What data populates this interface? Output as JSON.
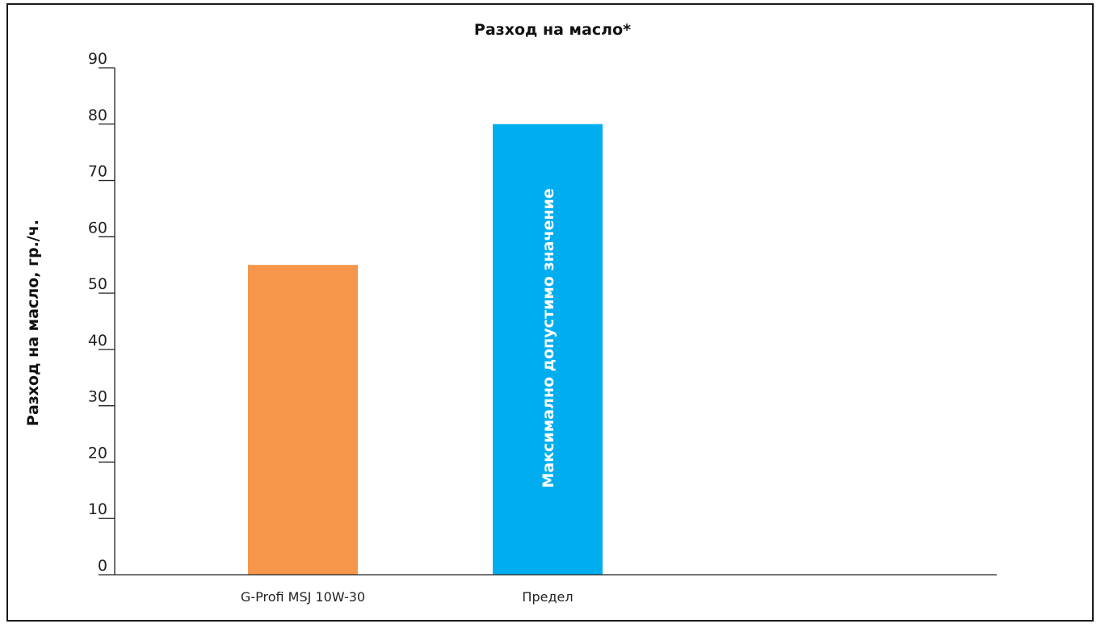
{
  "chart_data": {
    "type": "bar",
    "title": "Разход на масло*",
    "xlabel": "",
    "ylabel": "Разход на масло, гр./ч.",
    "ylim": [
      0,
      90
    ],
    "yticks": [
      0,
      10,
      20,
      30,
      40,
      50,
      60,
      70,
      80,
      90
    ],
    "categories": [
      "G-Profi MSJ 10W-30",
      "Предел"
    ],
    "values": [
      55,
      80
    ],
    "colors": [
      "#F5964A",
      "#00AEEF"
    ],
    "bar_labels": [
      "",
      "Максимално допустимо значение"
    ],
    "grid": false,
    "legend": "none"
  }
}
